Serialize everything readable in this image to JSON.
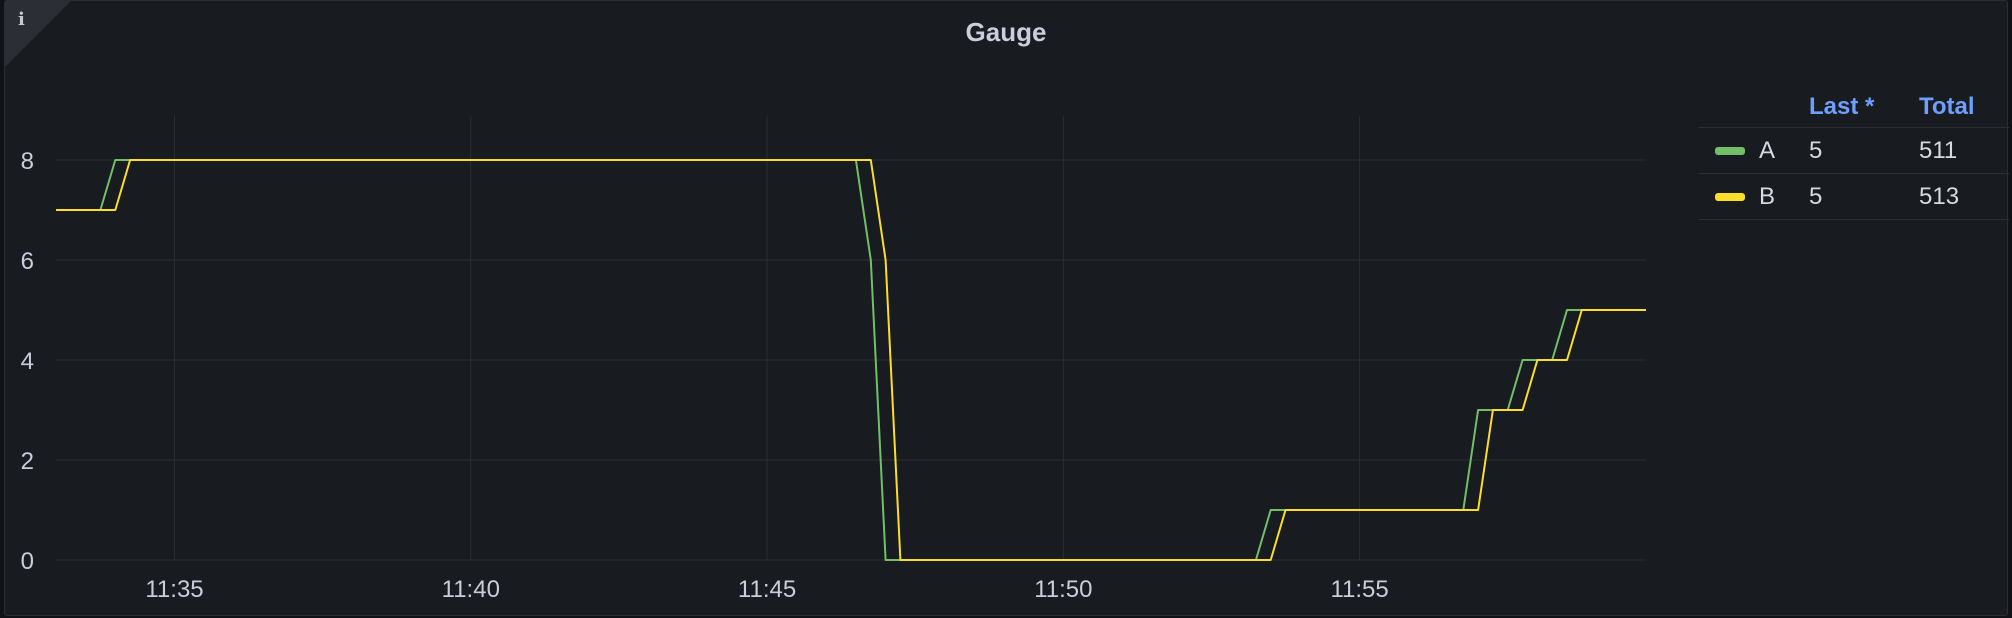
{
  "panel": {
    "title": "Gauge",
    "info_icon": "info-icon"
  },
  "legend": {
    "headers": {
      "last": "Last *",
      "total": "Total"
    },
    "rows": [
      {
        "name": "A",
        "last": "5",
        "total": "511",
        "color": "#73bf69"
      },
      {
        "name": "B",
        "last": "5",
        "total": "513",
        "color": "#fade2a"
      }
    ]
  },
  "chart_data": {
    "type": "line",
    "title": "Gauge",
    "xlabel": "",
    "ylabel": "",
    "x_range": [
      "11:33:00",
      "11:59:50"
    ],
    "ylim": [
      0,
      9
    ],
    "yticks": [
      0,
      2,
      4,
      6,
      8
    ],
    "xticks": [
      "11:35",
      "11:40",
      "11:45",
      "11:50",
      "11:55"
    ],
    "grid": true,
    "legend_position": "right",
    "series": [
      {
        "name": "A",
        "color": "#73bf69",
        "points": [
          [
            "11:33:00",
            7
          ],
          [
            "11:33:45",
            7
          ],
          [
            "11:34:00",
            8
          ],
          [
            "11:46:30",
            8
          ],
          [
            "11:46:45",
            6
          ],
          [
            "11:47:00",
            0
          ],
          [
            "11:53:15",
            0
          ],
          [
            "11:53:30",
            1
          ],
          [
            "11:56:45",
            1
          ],
          [
            "11:57:00",
            3
          ],
          [
            "11:57:30",
            3
          ],
          [
            "11:57:45",
            4
          ],
          [
            "11:58:15",
            4
          ],
          [
            "11:58:30",
            5
          ],
          [
            "11:59:50",
            5
          ]
        ]
      },
      {
        "name": "B",
        "color": "#fade2a",
        "points": [
          [
            "11:33:00",
            7
          ],
          [
            "11:34:00",
            7
          ],
          [
            "11:34:15",
            8
          ],
          [
            "11:46:45",
            8
          ],
          [
            "11:47:00",
            6
          ],
          [
            "11:47:15",
            0
          ],
          [
            "11:53:30",
            0
          ],
          [
            "11:53:45",
            1
          ],
          [
            "11:57:00",
            1
          ],
          [
            "11:57:15",
            3
          ],
          [
            "11:57:45",
            3
          ],
          [
            "11:58:00",
            4
          ],
          [
            "11:58:30",
            4
          ],
          [
            "11:58:45",
            5
          ],
          [
            "11:59:50",
            5
          ]
        ]
      }
    ]
  }
}
